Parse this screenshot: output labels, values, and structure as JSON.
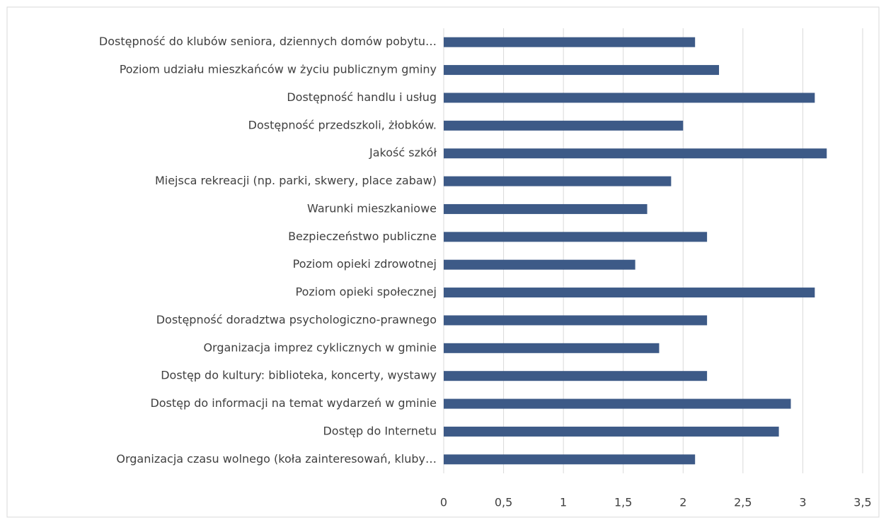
{
  "chart_data": {
    "type": "barh",
    "categories": [
      "Dostępność do klubów seniora,  dziennych domów pobytu…",
      "Poziom udziału mieszkańców w życiu publicznym gminy",
      "Dostępność handlu i usług",
      "Dostępność przedszkoli, żłobków.",
      "Jakość szkół",
      "Miejsca rekreacji (np. parki, skwery, place zabaw)",
      "Warunki mieszkaniowe",
      "Bezpieczeństwo publiczne",
      "Poziom opieki zdrowotnej",
      "Poziom opieki społecznej",
      "Dostępność doradztwa psychologiczno-prawnego",
      "Organizacja imprez cyklicznych  w gminie",
      "Dostęp do kultury: biblioteka, koncerty, wystawy",
      "Dostęp do informacji na temat wydarzeń w gminie",
      "Dostęp do Internetu",
      "Organizacja czasu wolnego (koła zainteresowań, kluby…"
    ],
    "values": [
      2.1,
      2.3,
      3.1,
      2.0,
      3.2,
      1.9,
      1.7,
      2.2,
      1.6,
      3.1,
      2.2,
      1.8,
      2.2,
      2.9,
      2.8,
      2.1
    ],
    "color": "#3d5a87",
    "xlim": [
      0,
      3.5
    ],
    "xticks": [
      0,
      {
        "value": 0.5,
        "label": "0,5"
      },
      1,
      {
        "value": 1.5,
        "label": "1,5"
      },
      2,
      {
        "value": 2.5,
        "label": "2,5"
      },
      3,
      {
        "value": 3.5,
        "label": "3,5"
      }
    ],
    "grid": true
  }
}
